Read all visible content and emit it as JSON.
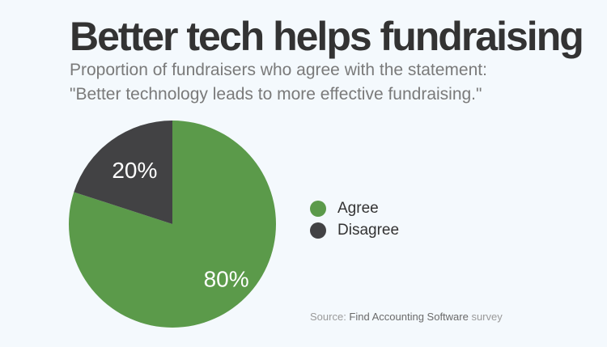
{
  "colors": {
    "background": "#f4f9fd",
    "agree": "#5b9a4a",
    "disagree": "#424244",
    "title": "#333333",
    "subtitle": "#7a7a7a"
  },
  "source": {
    "prefix": "Source: ",
    "name": "Find Accounting Software",
    "suffix": " survey"
  },
  "chart_data": {
    "type": "pie",
    "title": "Better tech helps fundraising",
    "subtitle_lines": [
      "Proportion of fundraisers who agree with the statement:",
      "\"Better technology leads to more effective fundraising.\""
    ],
    "categories": [
      "Agree",
      "Disagree"
    ],
    "values": [
      80,
      20
    ],
    "labels": [
      "80%",
      "20%"
    ],
    "colors": [
      "#5b9a4a",
      "#424244"
    ],
    "legend_placement": "right"
  }
}
